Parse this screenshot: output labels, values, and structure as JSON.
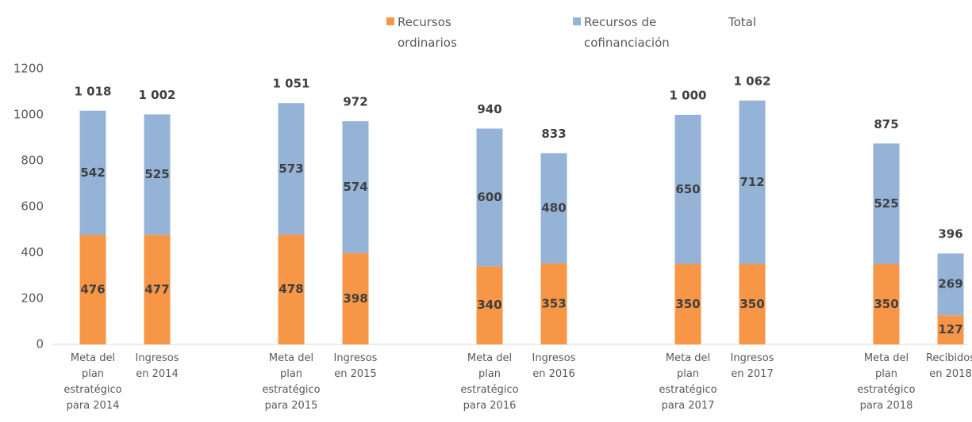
{
  "chart_data": {
    "type": "stacked_bar",
    "categories": [
      "Meta del plan estratégico para 2014",
      "Ingresos en 2014",
      "Meta del plan estratégico para 2015",
      "Ingresos en 2015",
      "Meta del plan estratégico para 2016",
      "Ingresos en 2016",
      "Meta del plan estratégico para 2017",
      "Ingresos en 2017",
      "Meta del plan estratégico para 2018",
      "Recibidos en 2018"
    ],
    "series": [
      {
        "name": "Recursos ordinarios",
        "color": "#f79646",
        "values": [
          476,
          477,
          478,
          398,
          340,
          353,
          350,
          350,
          350,
          127
        ]
      },
      {
        "name": "Recursos de cofinanciación",
        "color": "#95b3d7",
        "values": [
          542,
          525,
          573,
          574,
          600,
          480,
          650,
          712,
          525,
          269
        ]
      },
      {
        "name": "Total",
        "values": [
          1018,
          1002,
          1051,
          972,
          940,
          833,
          1000,
          1062,
          875,
          396
        ],
        "value_labels": [
          "1 018",
          "1 002",
          "1 051",
          "972",
          "940",
          "833",
          "1 000",
          "1 062",
          "875",
          "396"
        ]
      }
    ],
    "ylim": [
      0,
      1200
    ],
    "yticks": [
      0,
      200,
      400,
      600,
      800,
      1000,
      1200
    ],
    "grid": false,
    "legend": "top"
  }
}
